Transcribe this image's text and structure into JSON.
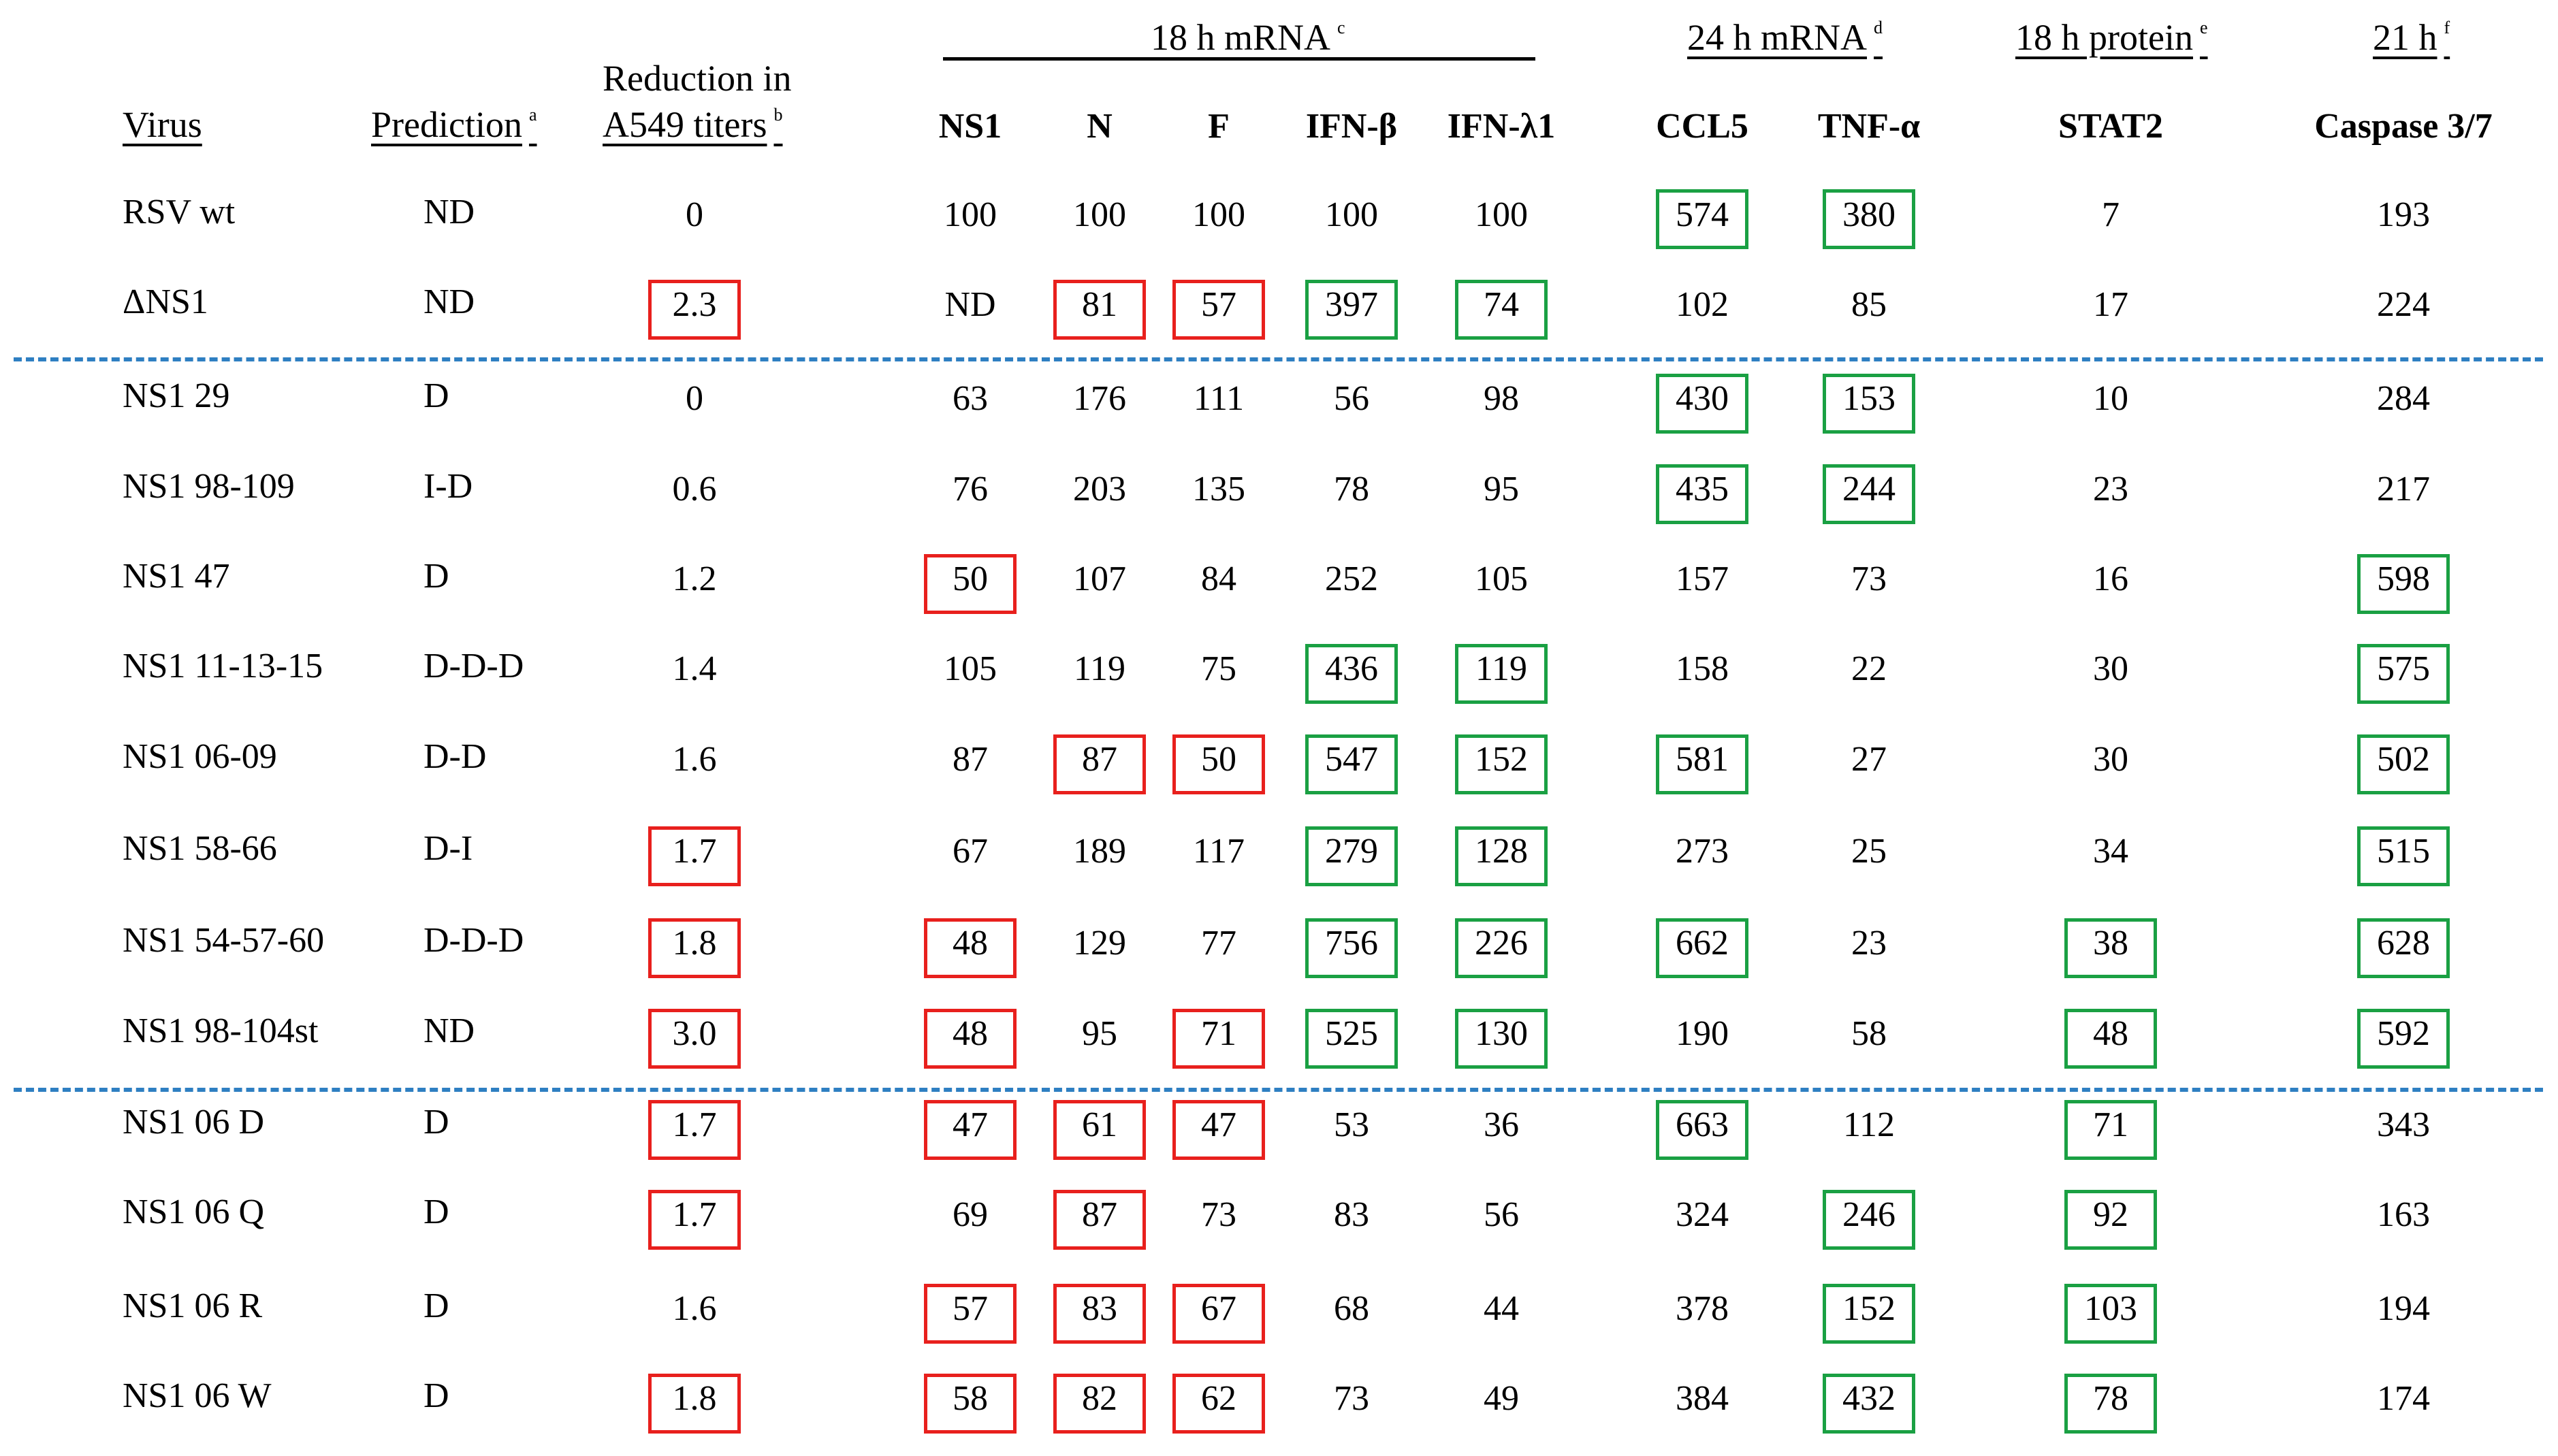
{
  "headers": {
    "virus": "Virus",
    "prediction": "Prediction",
    "prediction_sup": "a",
    "reduction_line1": "Reduction in",
    "reduction_line2": "A549 titers",
    "reduction_sup": "b",
    "group_18h_mrna": "18 h mRNA",
    "group_18h_mrna_sup": "c",
    "group_24h_mrna": "24 h mRNA",
    "group_24h_mrna_sup": "d",
    "group_18h_protein": "18 h protein",
    "group_18h_protein_sup": "e",
    "group_21h": "21 h",
    "group_21h_sup": "f",
    "col_ns1": "NS1",
    "col_n": "N",
    "col_f": "F",
    "col_ifnb": "IFN-β",
    "col_ifnl1": "IFN-λ1",
    "col_ccl5": "CCL5",
    "col_tnfa": "TNF-α",
    "col_stat2": "STAT2",
    "col_caspase": "Caspase 3/7"
  },
  "highlight_colors": {
    "red": "#e8201d",
    "green": "#1aa043",
    "divider": "#2e7fc2"
  },
  "rows": [
    {
      "virus": "RSV wt",
      "prediction": "ND",
      "reduction": "0",
      "ns1": "100",
      "n": "100",
      "f": "100",
      "ifnb": "100",
      "ifnl1": "100",
      "ccl5": "574",
      "tnfa": "380",
      "stat2": "7",
      "caspase": "193"
    },
    {
      "virus": "ΔNS1",
      "prediction": "ND",
      "reduction": "2.3",
      "ns1": "ND",
      "n": "81",
      "f": "57",
      "ifnb": "397",
      "ifnl1": "74",
      "ccl5": "102",
      "tnfa": "85",
      "stat2": "17",
      "caspase": "224"
    },
    {
      "virus": "NS1 29",
      "prediction": "D",
      "reduction": "0",
      "ns1": "63",
      "n": "176",
      "f": "111",
      "ifnb": "56",
      "ifnl1": "98",
      "ccl5": "430",
      "tnfa": "153",
      "stat2": "10",
      "caspase": "284"
    },
    {
      "virus": "NS1 98-109",
      "prediction": "I-D",
      "reduction": "0.6",
      "ns1": "76",
      "n": "203",
      "f": "135",
      "ifnb": "78",
      "ifnl1": "95",
      "ccl5": "435",
      "tnfa": "244",
      "stat2": "23",
      "caspase": "217"
    },
    {
      "virus": "NS1 47",
      "prediction": "D",
      "reduction": "1.2",
      "ns1": "50",
      "n": "107",
      "f": "84",
      "ifnb": "252",
      "ifnl1": "105",
      "ccl5": "157",
      "tnfa": "73",
      "stat2": "16",
      "caspase": "598"
    },
    {
      "virus": "NS1 11-13-15",
      "prediction": "D-D-D",
      "reduction": "1.4",
      "ns1": "105",
      "n": "119",
      "f": "75",
      "ifnb": "436",
      "ifnl1": "119",
      "ccl5": "158",
      "tnfa": "22",
      "stat2": "30",
      "caspase": "575"
    },
    {
      "virus": "NS1 06-09",
      "prediction": "D-D",
      "reduction": "1.6",
      "ns1": "87",
      "n": "87",
      "f": "50",
      "ifnb": "547",
      "ifnl1": "152",
      "ccl5": "581",
      "tnfa": "27",
      "stat2": "30",
      "caspase": "502"
    },
    {
      "virus": "NS1 58-66",
      "prediction": "D-I",
      "reduction": "1.7",
      "ns1": "67",
      "n": "189",
      "f": "117",
      "ifnb": "279",
      "ifnl1": "128",
      "ccl5": "273",
      "tnfa": "25",
      "stat2": "34",
      "caspase": "515"
    },
    {
      "virus": "NS1 54-57-60",
      "prediction": "D-D-D",
      "reduction": "1.8",
      "ns1": "48",
      "n": "129",
      "f": "77",
      "ifnb": "756",
      "ifnl1": "226",
      "ccl5": "662",
      "tnfa": "23",
      "stat2": "38",
      "caspase": "628"
    },
    {
      "virus": "NS1 98-104st",
      "prediction": "ND",
      "reduction": "3.0",
      "ns1": "48",
      "n": "95",
      "f": "71",
      "ifnb": "525",
      "ifnl1": "130",
      "ccl5": "190",
      "tnfa": "58",
      "stat2": "48",
      "caspase": "592"
    },
    {
      "virus": "NS1 06 D",
      "prediction": "D",
      "reduction": "1.7",
      "ns1": "47",
      "n": "61",
      "f": "47",
      "ifnb": "53",
      "ifnl1": "36",
      "ccl5": "663",
      "tnfa": "112",
      "stat2": "71",
      "caspase": "343"
    },
    {
      "virus": "NS1 06 Q",
      "prediction": "D",
      "reduction": "1.7",
      "ns1": "69",
      "n": "87",
      "f": "73",
      "ifnb": "83",
      "ifnl1": "56",
      "ccl5": "324",
      "tnfa": "246",
      "stat2": "92",
      "caspase": "163"
    },
    {
      "virus": "NS1 06 R",
      "prediction": "D",
      "reduction": "1.6",
      "ns1": "57",
      "n": "83",
      "f": "67",
      "ifnb": "68",
      "ifnl1": "44",
      "ccl5": "378",
      "tnfa": "152",
      "stat2": "103",
      "caspase": "194"
    },
    {
      "virus": "NS1 06 W",
      "prediction": "D",
      "reduction": "1.8",
      "ns1": "58",
      "n": "82",
      "f": "62",
      "ifnb": "73",
      "ifnl1": "49",
      "ccl5": "384",
      "tnfa": "432",
      "stat2": "78",
      "caspase": "174"
    }
  ]
}
